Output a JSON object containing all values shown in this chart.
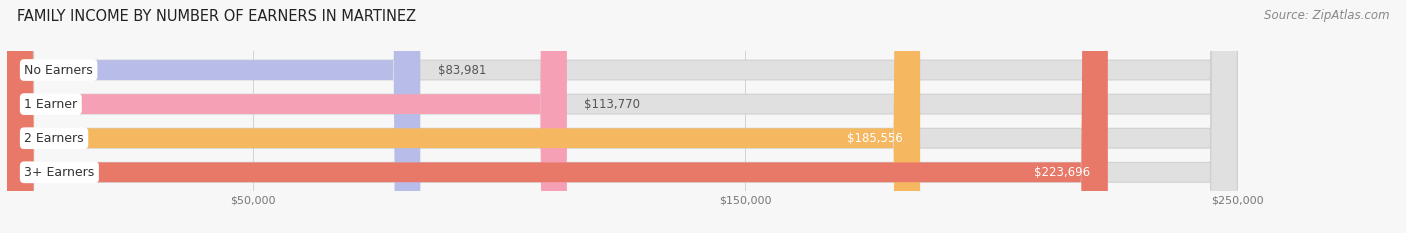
{
  "title": "FAMILY INCOME BY NUMBER OF EARNERS IN MARTINEZ",
  "source": "Source: ZipAtlas.com",
  "categories": [
    "No Earners",
    "1 Earner",
    "2 Earners",
    "3+ Earners"
  ],
  "values": [
    83981,
    113770,
    185556,
    223696
  ],
  "bar_colors": [
    "#b8bce8",
    "#f5a0b5",
    "#f5b860",
    "#e87868"
  ],
  "bar_bg_color": "#e0e0e0",
  "label_colors": [
    "#555555",
    "#555555",
    "#ffffff",
    "#ffffff"
  ],
  "xlim": [
    0,
    280000
  ],
  "axis_max": 250000,
  "xticks": [
    50000,
    150000,
    250000
  ],
  "xtick_labels": [
    "$50,000",
    "$150,000",
    "$250,000"
  ],
  "title_fontsize": 10.5,
  "source_fontsize": 8.5,
  "bar_label_fontsize": 8.5,
  "category_fontsize": 9,
  "background_color": "#f7f7f7",
  "white_bg": "#ffffff"
}
